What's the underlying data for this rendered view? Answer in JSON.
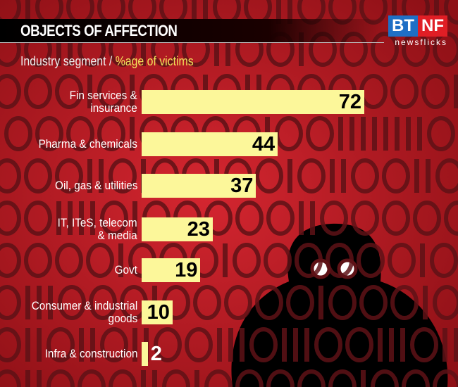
{
  "header": {
    "title": "OBJECTS OF AFFECTION",
    "subtitle_category": "Industry segment /",
    "subtitle_value": "%age of victims"
  },
  "logo": {
    "left": "BT",
    "right": "NF",
    "tagline": "newsflicks"
  },
  "colors": {
    "background": "#b51a22",
    "bar": "#fcf79a",
    "pattern": "#5e1216",
    "accent_text": "#f3e05a"
  },
  "chart_data": {
    "type": "bar",
    "orientation": "horizontal",
    "title": "OBJECTS OF AFFECTION",
    "categories": [
      "Fin services & insurance",
      "Pharma & chemicals",
      "Oil, gas & utilities",
      "IT, ITeS, telecom & media",
      "Govt",
      "Consumer & industrial goods",
      "Infra & construction"
    ],
    "category_lines": [
      [
        "Fin services &",
        "insurance"
      ],
      [
        "Pharma & chemicals"
      ],
      [
        "Oil, gas & utilities"
      ],
      [
        "IT, ITeS, telecom",
        "& media"
      ],
      [
        "Govt"
      ],
      [
        "Consumer & industrial",
        "goods"
      ],
      [
        "Infra & construction"
      ]
    ],
    "values": [
      72,
      44,
      37,
      23,
      19,
      10,
      2
    ],
    "xlim": [
      0,
      72
    ],
    "grid": false,
    "data_labels": true
  }
}
